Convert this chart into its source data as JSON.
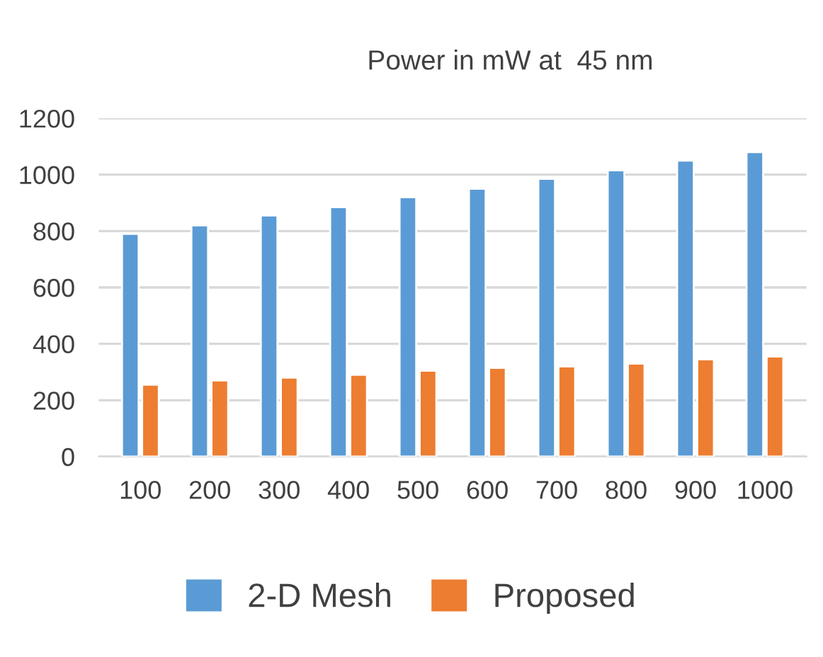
{
  "chart_data": {
    "type": "bar",
    "title": "Power in mW at  45 nm",
    "categories": [
      "100",
      "200",
      "300",
      "400",
      "500",
      "600",
      "700",
      "800",
      "900",
      "1000"
    ],
    "series": [
      {
        "name": "2-D Mesh",
        "color": "#5b9bd5",
        "values": [
          790,
          820,
          855,
          885,
          920,
          950,
          985,
          1015,
          1050,
          1080
        ]
      },
      {
        "name": "Proposed",
        "color": "#ed7d31",
        "values": [
          255,
          270,
          280,
          290,
          305,
          315,
          320,
          330,
          345,
          355
        ]
      }
    ],
    "ylim": [
      0,
      1200
    ],
    "yticks": [
      0,
      200,
      400,
      600,
      800,
      1000,
      1200
    ],
    "grid": "y",
    "legend": "bottom"
  }
}
